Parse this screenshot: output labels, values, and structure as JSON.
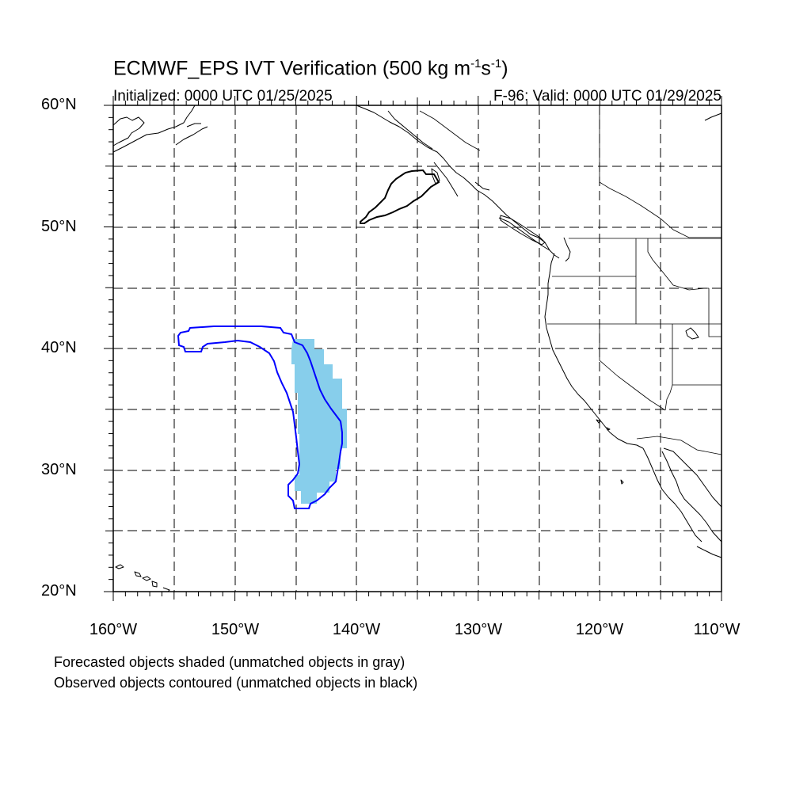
{
  "title": {
    "prefix": "ECMWF_EPS IVT Verification (500 kg m",
    "sup1": "-1",
    "mid": "s",
    "sup2": "-1",
    "suffix": ")"
  },
  "initialized": "Initialized: 0000 UTC 01/25/2025",
  "valid": "F-96: Valid: 0000 UTC 01/29/2025",
  "lat_labels": [
    "60°N",
    "50°N",
    "40°N",
    "30°N",
    "20°N"
  ],
  "lon_labels": [
    "160°W",
    "150°W",
    "140°W",
    "130°W",
    "120°W",
    "110°W"
  ],
  "notes": [
    "Forecasted objects shaded (unmatched objects in gray)",
    "Observed objects contoured (unmatched objects in black)"
  ],
  "colors": {
    "forecast_fill": "#87ceeb",
    "matched_observed_contour": "#0000ff",
    "unmatched_observed_contour": "#000000",
    "grid": "#000000"
  },
  "map": {
    "projection": "cylindrical-equidistant",
    "lon_range": [
      -160,
      -110
    ],
    "lat_range": [
      20,
      60
    ],
    "grid_lines": "dashed every 5 degrees"
  }
}
